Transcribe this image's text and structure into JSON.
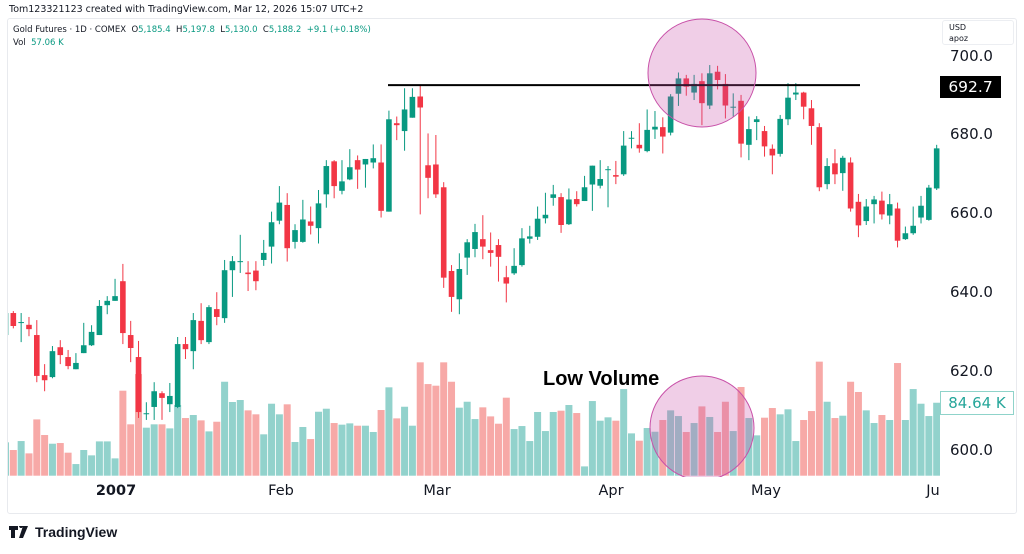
{
  "header": {
    "credit": "Tom123321123 created with TradingView.com, Mar 12, 2026 15:07 UTC+2"
  },
  "legend": {
    "symbol": "Gold Futures · 1D · COMEX",
    "o_label": "O",
    "o": "5,185.4",
    "h_label": "H",
    "h": "5,197.8",
    "l_label": "L",
    "l": "5,130.0",
    "c_label": "C",
    "c": "5,188.2",
    "change": "+9.1 (+0.18%)",
    "vol_label": "Vol",
    "vol": "57.06 K"
  },
  "scale_box": {
    "currency": "USD",
    "mode": "apoz"
  },
  "price_axis": {
    "ticks": [
      "700.0",
      "680.0",
      "660.0",
      "640.0",
      "620.0",
      "600.0"
    ],
    "last_price": "692.7",
    "last_volume": "84.64 K"
  },
  "time_axis": {
    "labels": [
      "2007",
      "Feb",
      "Mar",
      "Apr",
      "May",
      "Ju"
    ]
  },
  "annotations": {
    "low_volume": "Low Volume",
    "resistance_level": 692.7
  },
  "brand": {
    "name": "TradingView"
  },
  "colors": {
    "up": "#089981",
    "down": "#f23645",
    "vol_up": "#92d2cc",
    "vol_down": "#f7a9a7",
    "highlight": "#c850a8"
  },
  "chart_data": {
    "type": "candlestick",
    "ylim": [
      590,
      705
    ],
    "yticks": [
      600,
      620,
      640,
      660,
      680,
      700
    ],
    "xticks": [
      "2007",
      "Feb",
      "Mar",
      "Apr",
      "May",
      "Ju"
    ],
    "grid": false,
    "ohlc": [
      [
        629.1,
        634.7,
        629.1,
        634.7
      ],
      [
        634.7,
        635.2,
        630.8,
        631.4
      ],
      [
        632.4,
        634.7,
        627.3,
        632.4
      ],
      [
        631.7,
        633.7,
        628.8,
        630.6
      ],
      [
        629.1,
        632.9,
        617.1,
        618.7
      ],
      [
        618.9,
        621.7,
        614.8,
        617.6
      ],
      [
        618.4,
        626.3,
        618.1,
        625.0
      ],
      [
        626.0,
        627.8,
        621.7,
        624.0
      ],
      [
        623.5,
        625.3,
        620.4,
        621.2
      ],
      [
        620.4,
        624.5,
        620.4,
        622.0
      ],
      [
        624.5,
        632.2,
        624.5,
        626.5
      ],
      [
        626.5,
        631.6,
        626.3,
        629.9
      ],
      [
        629.1,
        638.0,
        629.1,
        636.5
      ],
      [
        636.7,
        639.0,
        634.4,
        637.8
      ],
      [
        637.8,
        643.4,
        637.8,
        639.0
      ],
      [
        642.8,
        647.2,
        626.8,
        629.6
      ],
      [
        629.1,
        632.7,
        622.2,
        625.8
      ],
      [
        623.5,
        627.6,
        608.0,
        609.5
      ],
      [
        609.2,
        612.0,
        607.5,
        609.2
      ],
      [
        610.8,
        617.1,
        607.5,
        614.8
      ],
      [
        614.3,
        614.8,
        607.5,
        613.1
      ],
      [
        611.5,
        616.9,
        609.5,
        613.6
      ],
      [
        610.8,
        628.6,
        610.5,
        626.8
      ],
      [
        626.8,
        628.6,
        623.0,
        625.5
      ],
      [
        625.0,
        634.7,
        620.4,
        632.9
      ],
      [
        632.7,
        637.2,
        626.8,
        627.8
      ],
      [
        627.3,
        636.7,
        626.8,
        636.2
      ],
      [
        635.7,
        640.0,
        631.6,
        633.7
      ],
      [
        633.4,
        648.2,
        632.2,
        645.6
      ],
      [
        645.6,
        649.2,
        638.8,
        647.9
      ],
      [
        647.9,
        654.6,
        644.9,
        647.9
      ],
      [
        645.0,
        647.9,
        640.3,
        644.6
      ],
      [
        645.5,
        647.9,
        640.5,
        642.8
      ],
      [
        648.2,
        653.3,
        646.7,
        650.0
      ],
      [
        651.6,
        660.5,
        647.3,
        657.8
      ],
      [
        658.2,
        667.0,
        657.3,
        662.8
      ],
      [
        662.2,
        665.2,
        647.8,
        651.2
      ],
      [
        652.8,
        657.3,
        651.1,
        655.8
      ],
      [
        652.8,
        663.5,
        652.6,
        658.5
      ],
      [
        658.0,
        661.8,
        654.7,
        656.9
      ],
      [
        656.3,
        666.0,
        652.4,
        662.6
      ],
      [
        664.9,
        673.6,
        661.5,
        672.1
      ],
      [
        673.3,
        673.6,
        663.9,
        667.0
      ],
      [
        665.8,
        673.6,
        664.9,
        668.2
      ],
      [
        668.7,
        676.4,
        668.5,
        671.8
      ],
      [
        673.6,
        674.8,
        666.3,
        671.2
      ],
      [
        672.5,
        673.9,
        666.6,
        673.9
      ],
      [
        673.0,
        677.6,
        671.5,
        674.1
      ],
      [
        673.0,
        677.6,
        659.0,
        660.7
      ],
      [
        660.5,
        686.2,
        660.5,
        684.0
      ],
      [
        683.0,
        684.7,
        678.7,
        682.5
      ],
      [
        681.0,
        691.9,
        676.0,
        686.5
      ],
      [
        684.4,
        691.9,
        684.4,
        689.7
      ],
      [
        689.8,
        692.5,
        659.8,
        687.0
      ],
      [
        672.3,
        680.4,
        663.9,
        669.1
      ],
      [
        672.5,
        680.0,
        664.0,
        664.9
      ],
      [
        666.7,
        668.0,
        641.1,
        643.7
      ],
      [
        645.4,
        646.9,
        635.0,
        638.8
      ],
      [
        638.2,
        649.9,
        634.4,
        645.9
      ],
      [
        648.8,
        653.5,
        644.4,
        652.7
      ],
      [
        651.0,
        657.4,
        648.9,
        655.3
      ],
      [
        653.5,
        659.6,
        648.4,
        651.6
      ],
      [
        650.7,
        655.2,
        646.5,
        650.0
      ],
      [
        652.0,
        653.5,
        642.7,
        649.0
      ],
      [
        643.8,
        646.7,
        637.4,
        642.2
      ],
      [
        644.8,
        651.2,
        644.4,
        646.7
      ],
      [
        646.9,
        656.3,
        646.5,
        653.7
      ],
      [
        653.6,
        656.9,
        652.4,
        654.2
      ],
      [
        654.1,
        661.8,
        653.3,
        658.7
      ],
      [
        658.8,
        665.3,
        657.5,
        659.7
      ],
      [
        664.0,
        667.3,
        662.0,
        664.9
      ],
      [
        664.2,
        665.2,
        655.1,
        657.1
      ],
      [
        657.3,
        666.4,
        657.1,
        663.6
      ],
      [
        663.7,
        665.7,
        661.8,
        662.4
      ],
      [
        663.2,
        669.6,
        663.2,
        666.7
      ],
      [
        667.4,
        672.2,
        660.7,
        672.2
      ],
      [
        667.1,
        673.6,
        666.4,
        668.8
      ],
      [
        671.1,
        672.1,
        661.6,
        671.3
      ],
      [
        669.8,
        673.4,
        667.5,
        669.4
      ],
      [
        670.0,
        681.0,
        669.6,
        677.3
      ],
      [
        679.1,
        681.0,
        676.6,
        679.3
      ],
      [
        677.5,
        683.0,
        675.5,
        676.6
      ],
      [
        675.9,
        686.5,
        675.6,
        681.3
      ],
      [
        681.4,
        686.1,
        679.0,
        682.1
      ],
      [
        682.0,
        684.5,
        675.3,
        679.6
      ],
      [
        680.6,
        690.4,
        679.9,
        689.8
      ],
      [
        690.5,
        695.9,
        687.4,
        694.4
      ],
      [
        694.4,
        695.3,
        690.0,
        692.3
      ],
      [
        690.8,
        695.3,
        688.9,
        693.0
      ],
      [
        693.7,
        695.7,
        682.5,
        688.1
      ],
      [
        687.5,
        697.8,
        686.6,
        695.7
      ],
      [
        696.1,
        697.6,
        691.6,
        694.0
      ],
      [
        693.0,
        695.5,
        684.2,
        687.5
      ],
      [
        687.2,
        690.6,
        684.7,
        687.2
      ],
      [
        688.7,
        690.2,
        674.3,
        677.8
      ],
      [
        677.5,
        684.7,
        673.6,
        681.5
      ],
      [
        683.3,
        684.8,
        678.7,
        684.0
      ],
      [
        681.0,
        682.3,
        674.5,
        677.1
      ],
      [
        676.5,
        677.6,
        670.0,
        674.8
      ],
      [
        675.2,
        685.1,
        674.5,
        684.1
      ],
      [
        684.0,
        693.2,
        682.5,
        689.5
      ],
      [
        690.3,
        693.2,
        688.9,
        690.8
      ],
      [
        690.8,
        691.0,
        684.0,
        687.2
      ],
      [
        686.8,
        688.9,
        677.5,
        682.3
      ],
      [
        682.0,
        683.0,
        665.7,
        666.7
      ],
      [
        667.5,
        674.1,
        666.2,
        672.1
      ],
      [
        672.8,
        676.4,
        667.5,
        670.0
      ],
      [
        670.3,
        674.7,
        665.8,
        674.2
      ],
      [
        673.0,
        674.3,
        660.5,
        661.3
      ],
      [
        663.0,
        665.0,
        654.0,
        657.0
      ],
      [
        658.1,
        663.7,
        657.1,
        661.8
      ],
      [
        662.4,
        664.5,
        657.5,
        663.6
      ],
      [
        663.3,
        665.6,
        658.5,
        659.8
      ],
      [
        659.5,
        665.0,
        657.3,
        662.4
      ],
      [
        661.3,
        662.8,
        651.4,
        653.1
      ],
      [
        653.5,
        656.7,
        653.3,
        655.0
      ],
      [
        655.0,
        661.8,
        654.6,
        656.9
      ],
      [
        659.0,
        664.5,
        657.5,
        662.0
      ],
      [
        658.4,
        667.3,
        658.2,
        666.6
      ],
      [
        666.4,
        677.5,
        666.0,
        676.6
      ]
    ],
    "volume_k": [
      38.7,
      29.8,
      40.2,
      25.9,
      65.3,
      47.2,
      37.1,
      37.9,
      26.7,
      13.5,
      29.8,
      23.6,
      39.8,
      39.8,
      20.1,
      98.6,
      59.6,
      117.9,
      55.7,
      59.6,
      59.6,
      54.9,
      82.0,
      66.9,
      70.4,
      64.2,
      51.4,
      62.6,
      109.0,
      85.5,
      87.8,
      75.8,
      71.2,
      48.0,
      83.5,
      71.2,
      82.8,
      39.1,
      56.5,
      42.5,
      74.2,
      77.7,
      61.1,
      59.2,
      60.7,
      58.0,
      58.0,
      50.7,
      76.2,
      102.5,
      66.5,
      80.0,
      58.0,
      131.5,
      106.3,
      104.4,
      131.5,
      109.0,
      78.9,
      85.8,
      65.7,
      79.3,
      68.8,
      60.3,
      90.5,
      54.1,
      57.6,
      40.2,
      73.9,
      51.8,
      73.9,
      75.4,
      82.0,
      72.7,
      10.8,
      86.6,
      63.8,
      67.7,
      63.8,
      100.5,
      49.1,
      40.6,
      55.3,
      51.0,
      64.6,
      75.8,
      69.2,
      50.7,
      61.1,
      80.4,
      68.1,
      50.7,
      85.8,
      51.8,
      102.9,
      66.9,
      46.8,
      67.3,
      78.5,
      71.2,
      77.0,
      40.2,
      64.6,
      75.0,
      132.3,
      85.8,
      66.9,
      69.6,
      109.0,
      97.1,
      75.8,
      61.1,
      70.4,
      64.6,
      130.7,
      64.6,
      100.5,
      83.5,
      69.2,
      84.64
    ]
  }
}
